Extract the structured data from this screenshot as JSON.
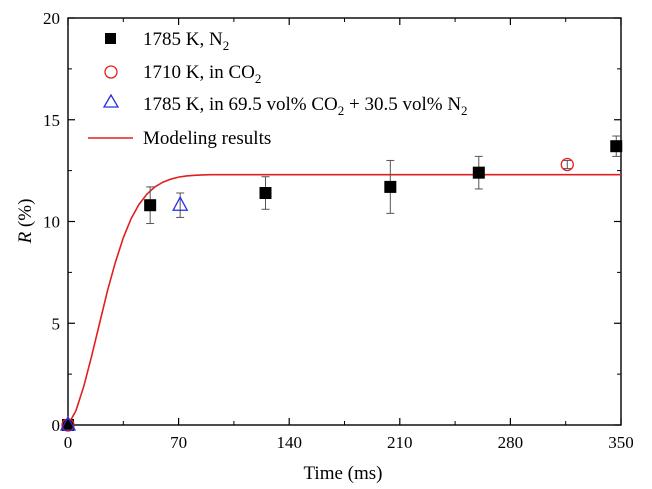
{
  "chart_data": {
    "type": "scatter",
    "xlabel": "Time (ms)",
    "ylabel_symbol": "R",
    "ylabel_unit": " (%)",
    "xlim": [
      0,
      350
    ],
    "ylim": [
      0,
      20
    ],
    "xticks": [
      0,
      70,
      140,
      210,
      280,
      350
    ],
    "yticks": [
      0,
      5,
      10,
      15,
      20
    ],
    "grid": false,
    "legend_position": "top-left",
    "series": [
      {
        "legend": {
          "main": "1785 K, N",
          "sub": "2",
          "tail": ""
        },
        "marker": "square",
        "color": "#000000",
        "points": [
          {
            "x": 0,
            "y": 0,
            "err": 0
          },
          {
            "x": 52,
            "y": 10.8,
            "err": 0.9
          },
          {
            "x": 125,
            "y": 11.4,
            "err": 0.8
          },
          {
            "x": 204,
            "y": 11.7,
            "err": 1.3
          },
          {
            "x": 260,
            "y": 12.4,
            "err": 0.8
          },
          {
            "x": 347,
            "y": 13.7,
            "err": 0.5
          }
        ]
      },
      {
        "legend": {
          "main": "1710 K, in CO",
          "sub": "2",
          "tail": ""
        },
        "marker": "circle",
        "color": "#e02020",
        "points": [
          {
            "x": 0,
            "y": 0,
            "err": 0
          },
          {
            "x": 316,
            "y": 12.8,
            "err": 0.2
          }
        ]
      },
      {
        "legend": {
          "main": "1785 K, in 69.5 vol% CO",
          "sub": "2",
          "tail": " + 30.5 vol% N",
          "sub2": "2"
        },
        "marker": "triangle",
        "color": "#2030e0",
        "points": [
          {
            "x": 0,
            "y": 0,
            "err": 0
          },
          {
            "x": 71,
            "y": 10.8,
            "err": 0.6
          }
        ]
      }
    ],
    "model": {
      "legend": "Modeling results",
      "color": "#e02020",
      "x": [
        0,
        5,
        10,
        15,
        20,
        25,
        30,
        35,
        40,
        45,
        50,
        55,
        60,
        65,
        70,
        75,
        80,
        85,
        90,
        95,
        100,
        110,
        120,
        140,
        175,
        210,
        280,
        350
      ],
      "y": [
        0,
        0.7,
        1.9,
        3.4,
        5.0,
        6.6,
        8.0,
        9.2,
        10.15,
        10.85,
        11.35,
        11.7,
        11.93,
        12.08,
        12.18,
        12.24,
        12.27,
        12.29,
        12.3,
        12.3,
        12.3,
        12.3,
        12.3,
        12.3,
        12.3,
        12.3,
        12.3,
        12.3
      ]
    }
  }
}
